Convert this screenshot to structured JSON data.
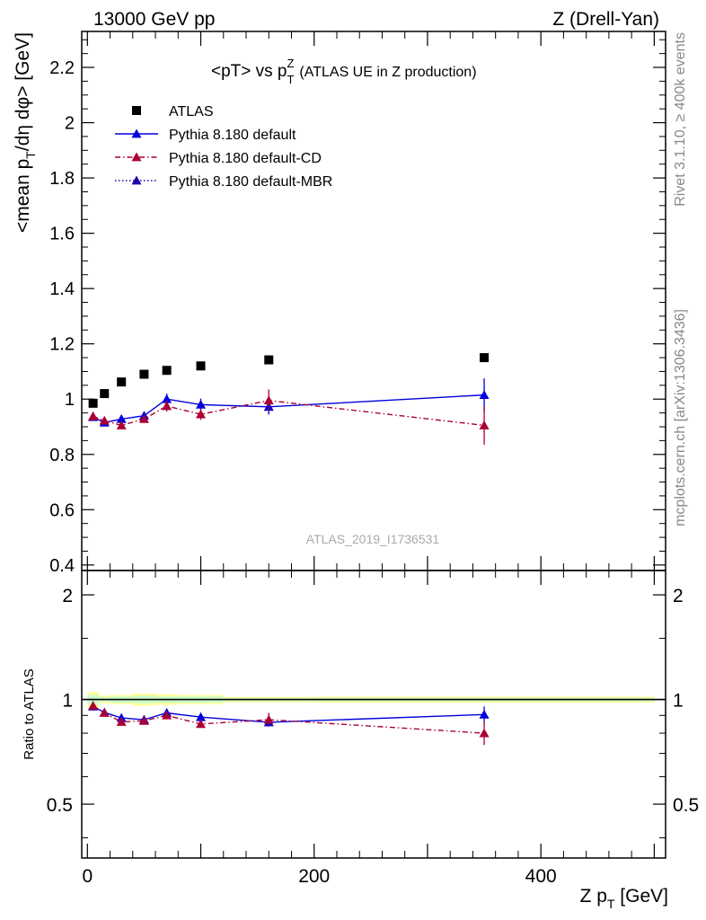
{
  "header": {
    "left": "13000 GeV pp",
    "right": "Z (Drell-Yan)"
  },
  "side_labels": {
    "rivet": "Rivet 3.1.10, ≥ 400k events",
    "mcplots": "mcplots.cern.ch [arXiv:1306.3436]"
  },
  "title": {
    "main": "<pT> vs p",
    "sub": "T",
    "sup": "Z",
    "note": "(ATLAS UE in Z production)"
  },
  "analysis_id": "ATLAS_2019_I1736531",
  "colors": {
    "data": "#000000",
    "default": "#0000dd",
    "cd": "#aa0033",
    "mbr": "#2200aa",
    "band_inner": "#ccffcc",
    "band_outer": "#ffff99"
  },
  "chart_data": [
    {
      "type": "scatter",
      "panel": "main",
      "ylabel_pre": "<mean p",
      "ylabel_sub": "T",
      "ylabel_post": "/dη dφ> [GeV]",
      "xlim": [
        -5,
        510
      ],
      "ylim": [
        0.38,
        2.33
      ],
      "yticks": [
        0.4,
        0.6,
        0.8,
        1.0,
        1.2,
        1.4,
        1.6,
        1.8,
        2.0,
        2.2
      ],
      "ytick_labels": [
        "0.4",
        "0.6",
        "0.8",
        "1",
        "1.2",
        "1.4",
        "1.6",
        "1.8",
        "2",
        "2.2"
      ],
      "legend_position": "top-left",
      "series": [
        {
          "name": "ATLAS",
          "style": "data",
          "x": [
            5,
            15,
            30,
            50,
            70,
            100,
            160,
            350
          ],
          "y": [
            0.985,
            1.02,
            1.062,
            1.09,
            1.104,
            1.12,
            1.142,
            1.15
          ],
          "yerr": [
            0.005,
            0.005,
            0.005,
            0.005,
            0.005,
            0.006,
            0.007,
            0.01
          ]
        },
        {
          "name": "Pythia 8.180 default",
          "style": "solid",
          "x": [
            5,
            15,
            30,
            50,
            70,
            100,
            160,
            350
          ],
          "y": [
            0.935,
            0.915,
            0.928,
            0.94,
            1.0,
            0.98,
            0.972,
            1.015
          ],
          "yerr": [
            0.01,
            0.01,
            0.01,
            0.012,
            0.02,
            0.022,
            0.028,
            0.06
          ]
        },
        {
          "name": "Pythia 8.180 default-CD",
          "style": "dashdot",
          "x": [
            5,
            15,
            30,
            50,
            70,
            100,
            160,
            350
          ],
          "y": [
            0.938,
            0.922,
            0.905,
            0.928,
            0.975,
            0.945,
            0.995,
            0.905
          ],
          "yerr": [
            0.01,
            0.01,
            0.01,
            0.012,
            0.02,
            0.02,
            0.04,
            0.07
          ]
        },
        {
          "name": "Pythia 8.180 default-MBR",
          "style": "dotted",
          "x": [],
          "y": [],
          "yerr": []
        }
      ]
    },
    {
      "type": "scatter",
      "panel": "ratio",
      "ylabel": "Ratio to ATLAS",
      "xlabel_pre": "Z p",
      "xlabel_sub": "T",
      "xlabel_post": " [GeV]",
      "xlim": [
        -5,
        510
      ],
      "ylim": [
        0.35,
        2.35
      ],
      "yscale": "log",
      "yticks": [
        0.5,
        1,
        2
      ],
      "ytick_labels": [
        "0.5",
        "1",
        "2"
      ],
      "xticks": [
        0,
        200,
        400
      ],
      "xtick_labels": [
        "0",
        "200",
        "400"
      ],
      "band": {
        "x_edges": [
          0,
          10,
          20,
          40,
          60,
          80,
          120,
          200,
          500
        ],
        "inner": [
          0.03,
          0.015,
          0.02,
          0.025,
          0.02,
          0.02,
          0.01,
          0.012
        ],
        "outer": [
          0.05,
          0.025,
          0.03,
          0.04,
          0.035,
          0.03,
          0.018,
          0.02
        ]
      },
      "series": [
        {
          "name": "Pythia 8.180 default",
          "style": "solid",
          "x": [
            5,
            15,
            30,
            50,
            70,
            100,
            160,
            350
          ],
          "y": [
            0.955,
            0.918,
            0.885,
            0.875,
            0.915,
            0.89,
            0.86,
            0.905
          ],
          "yerr": [
            0.01,
            0.01,
            0.012,
            0.012,
            0.02,
            0.02,
            0.025,
            0.05
          ]
        },
        {
          "name": "Pythia 8.180 default-CD",
          "style": "dashdot",
          "x": [
            5,
            15,
            30,
            50,
            70,
            100,
            160,
            350
          ],
          "y": [
            0.96,
            0.915,
            0.862,
            0.868,
            0.9,
            0.85,
            0.875,
            0.8
          ],
          "yerr": [
            0.01,
            0.01,
            0.012,
            0.012,
            0.02,
            0.02,
            0.04,
            0.06
          ]
        }
      ]
    }
  ]
}
